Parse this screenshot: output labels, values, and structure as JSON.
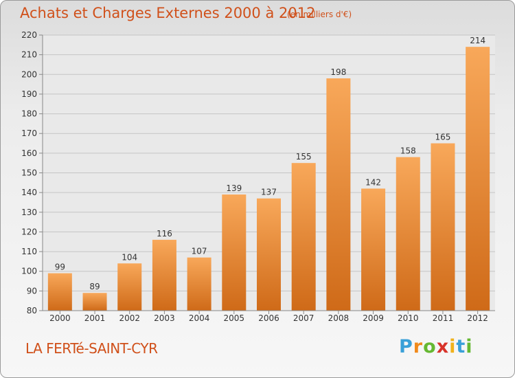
{
  "header": {
    "title": "Achats et Charges Externes 2000 à 2012",
    "unit": "(en milliers d'€)"
  },
  "footer": {
    "place": "LA FERTé-SAINT-CYR",
    "logo_letters": [
      "P",
      "r",
      "o",
      "x",
      "i",
      "t",
      "i"
    ],
    "logo_colors": [
      "#3aa0d8",
      "#f08a1c",
      "#66b832",
      "#d8332a",
      "#f0b21c",
      "#3aa0d8",
      "#66b832"
    ]
  },
  "colors": {
    "bar_light": "#f8a85a",
    "bar_dark": "#cf6a18",
    "accent": "#d0501a"
  },
  "chart_data": {
    "type": "bar",
    "title": "Achats et Charges Externes 2000 à 2012",
    "ylabel": "(en milliers d'€)",
    "xlabel": "",
    "categories": [
      "2000",
      "2001",
      "2002",
      "2003",
      "2004",
      "2005",
      "2006",
      "2007",
      "2008",
      "2009",
      "2010",
      "2011",
      "2012"
    ],
    "values": [
      99,
      89,
      104,
      116,
      107,
      139,
      137,
      155,
      198,
      142,
      158,
      165,
      214
    ],
    "ylim": [
      80,
      220
    ],
    "yticks": [
      80,
      90,
      100,
      110,
      120,
      130,
      140,
      150,
      160,
      170,
      180,
      190,
      200,
      210,
      220
    ],
    "grid": true
  }
}
